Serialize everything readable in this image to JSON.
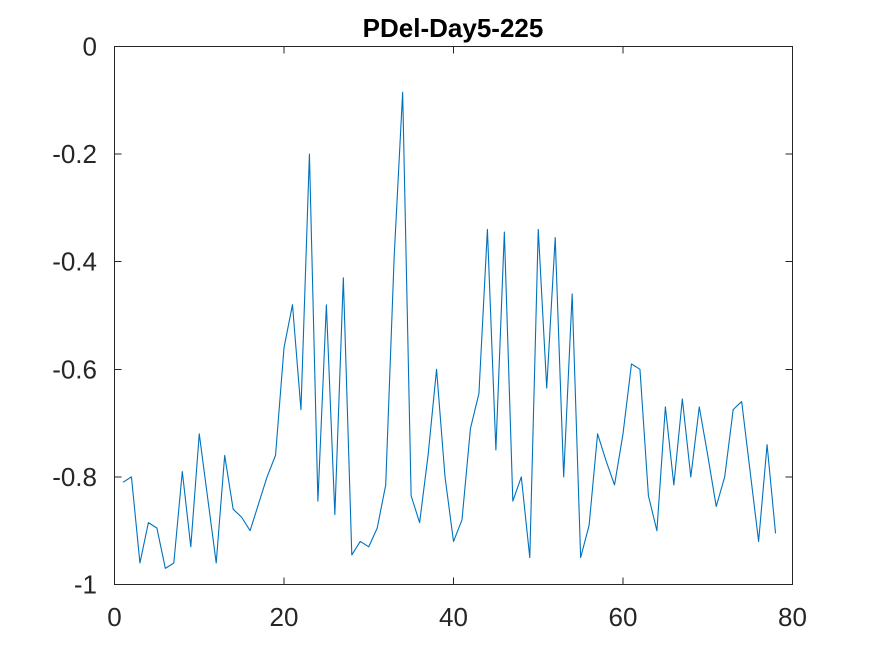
{
  "chart_data": {
    "type": "line",
    "title": "PDel-Day5-225",
    "xlabel": "",
    "ylabel": "",
    "xlim": [
      0,
      80
    ],
    "ylim": [
      -1,
      0
    ],
    "xticks": [
      0,
      20,
      40,
      60,
      80
    ],
    "yticks": [
      -1,
      -0.8,
      -0.6,
      -0.4,
      -0.2,
      0
    ],
    "xtick_labels": [
      "0",
      "20",
      "40",
      "60",
      "80"
    ],
    "ytick_labels": [
      "-1",
      "-0.8",
      "-0.6",
      "-0.4",
      "-0.2",
      "0"
    ],
    "grid": false,
    "box": true,
    "series": [
      {
        "color": "#0072BD",
        "x": [
          1,
          2,
          3,
          4,
          5,
          6,
          7,
          8,
          9,
          10,
          11,
          12,
          13,
          14,
          15,
          16,
          17,
          18,
          19,
          20,
          21,
          22,
          23,
          24,
          25,
          26,
          27,
          28,
          29,
          30,
          31,
          32,
          33,
          34,
          35,
          36,
          37,
          38,
          39,
          40,
          41,
          42,
          43,
          44,
          45,
          46,
          47,
          48,
          49,
          50,
          51,
          52,
          53,
          54,
          55,
          56,
          57,
          58,
          59,
          60,
          61,
          62,
          63,
          64,
          65,
          66,
          67,
          68,
          69,
          70,
          71,
          72,
          73,
          74,
          75,
          76,
          77,
          78
        ],
        "y": [
          -0.81,
          -0.8,
          -0.96,
          -0.885,
          -0.895,
          -0.97,
          -0.96,
          -0.79,
          -0.93,
          -0.72,
          -0.84,
          -0.96,
          -0.76,
          -0.86,
          -0.875,
          -0.9,
          -0.85,
          -0.8,
          -0.76,
          -0.56,
          -0.48,
          -0.675,
          -0.2,
          -0.845,
          -0.48,
          -0.87,
          -0.43,
          -0.945,
          -0.92,
          -0.93,
          -0.895,
          -0.815,
          -0.39,
          -0.085,
          -0.835,
          -0.885,
          -0.76,
          -0.6,
          -0.8,
          -0.92,
          -0.88,
          -0.71,
          -0.645,
          -0.34,
          -0.75,
          -0.345,
          -0.845,
          -0.8,
          -0.95,
          -0.34,
          -0.635,
          -0.355,
          -0.8,
          -0.46,
          -0.95,
          -0.89,
          -0.72,
          -0.77,
          -0.815,
          -0.72,
          -0.59,
          -0.6,
          -0.835,
          -0.9,
          -0.67,
          -0.815,
          -0.655,
          -0.8,
          -0.67,
          -0.76,
          -0.855,
          -0.8,
          -0.675,
          -0.66,
          -0.79,
          -0.92,
          -0.74,
          -0.905
        ]
      }
    ]
  }
}
